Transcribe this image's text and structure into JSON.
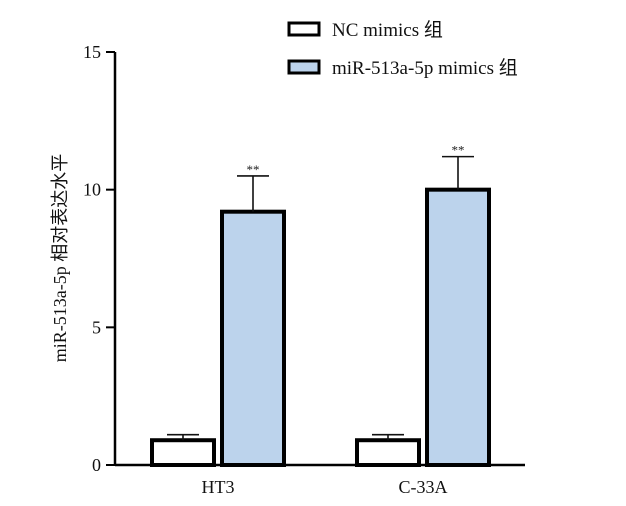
{
  "chart_data": {
    "type": "bar",
    "categories": [
      "HT3",
      "C-33A"
    ],
    "series": [
      {
        "name": "NC mimics 组",
        "values": [
          0.9,
          0.9
        ],
        "errors": [
          0.2,
          0.2
        ],
        "color": "#ffffff"
      },
      {
        "name": "miR-513a-5p mimics 组",
        "values": [
          9.2,
          10.0
        ],
        "errors": [
          1.3,
          1.2
        ],
        "color": "#bcd3ec"
      }
    ],
    "annotations": [
      {
        "category": "HT3",
        "series": 1,
        "text": "**"
      },
      {
        "category": "C-33A",
        "series": 1,
        "text": "**"
      }
    ],
    "ylabel": "miR-513a-5p 相对表达水平",
    "xlabel": "",
    "title": "",
    "ylim": [
      0,
      15
    ],
    "yticks": [
      0,
      5,
      10,
      15
    ],
    "legend_position": "top-right",
    "grid": false,
    "outline_color": "#000000"
  }
}
